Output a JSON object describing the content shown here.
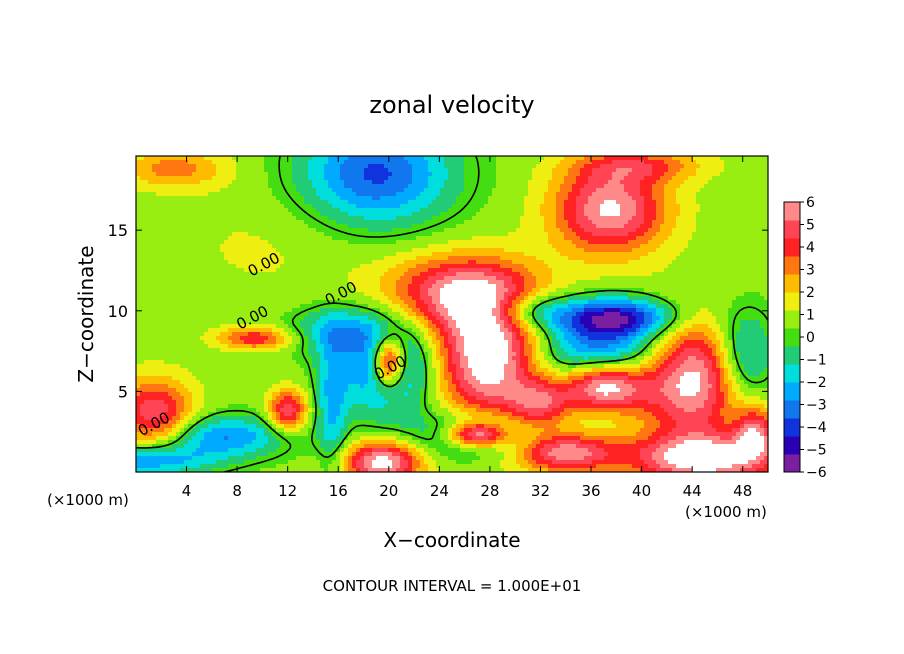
{
  "chart_data": {
    "type": "heatmap",
    "title": "zonal velocity",
    "xlabel": "X−coordinate",
    "ylabel": "Z−coordinate",
    "x_unit_left": "(×1000 m)",
    "x_unit_right": "(×1000 m)",
    "footer": "CONTOUR INTERVAL = 1.000E+01",
    "xlim": [
      0,
      50
    ],
    "ylim": [
      0,
      19.6
    ],
    "x_ticks": [
      4,
      8,
      12,
      16,
      20,
      24,
      28,
      32,
      36,
      40,
      44,
      48
    ],
    "x_tick_labels": [
      "4",
      "8",
      "12",
      "16",
      "20",
      "24",
      "28",
      "32",
      "36",
      "40",
      "44",
      "48"
    ],
    "y_ticks": [
      5,
      10,
      15
    ],
    "y_tick_labels": [
      "5",
      "10",
      "15"
    ],
    "colorbar": {
      "min": -6,
      "max": 6,
      "tick_values": [
        6,
        5,
        4,
        3,
        2,
        1,
        0,
        -1,
        -2,
        -3,
        -4,
        -5,
        -6
      ],
      "tick_labels": [
        "6",
        "5",
        "4",
        "3",
        "2",
        "1",
        "0",
        "−1",
        "−2",
        "−3",
        "−4",
        "−5",
        "−6"
      ],
      "colors": [
        "#7a1fa2",
        "#2a00b5",
        "#1133dd",
        "#1177ee",
        "#00aaff",
        "#00dddd",
        "#22cc77",
        "#44dd11",
        "#99ee11",
        "#eeee11",
        "#ffbb00",
        "#ff7711",
        "#ff2222",
        "#ff4455",
        "#ff8888"
      ]
    },
    "contour_label": "0.00",
    "contour_label_positions": [
      {
        "x": 10.3,
        "y": 12.6
      },
      {
        "x": 1.6,
        "y": 2.7
      },
      {
        "x": 9.4,
        "y": 9.3
      },
      {
        "x": 16.4,
        "y": 10.8
      },
      {
        "x": 20.3,
        "y": 6.2
      }
    ],
    "field_blobs": [
      {
        "x": 19,
        "y": 18.5,
        "rx": 6,
        "ry": 3.2,
        "v": -4.5
      },
      {
        "x": 37.5,
        "y": 16.3,
        "rx": 4.5,
        "ry": 2.8,
        "v": 5.5
      },
      {
        "x": 25.5,
        "y": 11.2,
        "rx": 6,
        "ry": 2.2,
        "v": 4.5
      },
      {
        "x": 28,
        "y": 7.2,
        "rx": 4.5,
        "ry": 4,
        "v": 7
      },
      {
        "x": 37,
        "y": 7.0,
        "rx": 6.5,
        "ry": 2.6,
        "v": -5
      },
      {
        "x": 37,
        "y": 5.4,
        "rx": 3.5,
        "ry": 1.6,
        "v": 8
      },
      {
        "x": 38,
        "y": 9.6,
        "rx": 5,
        "ry": 1.2,
        "v": -5
      },
      {
        "x": 44,
        "y": 6.0,
        "rx": 4.5,
        "ry": 3.5,
        "v": 7
      },
      {
        "x": 20,
        "y": 6.5,
        "rx": 4,
        "ry": 3,
        "v": -4.5
      },
      {
        "x": 20,
        "y": 6.8,
        "rx": 1.3,
        "ry": 1.6,
        "v": 7
      },
      {
        "x": 27,
        "y": 2.3,
        "rx": 4.5,
        "ry": 1.4,
        "v": -4
      },
      {
        "x": 27,
        "y": 2.3,
        "rx": 2.5,
        "ry": 0.8,
        "v": 7
      },
      {
        "x": 19.5,
        "y": 0.6,
        "rx": 3,
        "ry": 1.3,
        "v": 6
      },
      {
        "x": 34,
        "y": 1.2,
        "rx": 4,
        "ry": 1.2,
        "v": 5
      },
      {
        "x": 45,
        "y": 0.8,
        "rx": 6,
        "ry": 1.6,
        "v": 6
      },
      {
        "x": 1.5,
        "y": 3.6,
        "rx": 3,
        "ry": 2.2,
        "v": 4.5
      },
      {
        "x": 7,
        "y": 2.2,
        "rx": 5,
        "ry": 1.3,
        "v": -3.5
      },
      {
        "x": 12,
        "y": 3.8,
        "rx": 1.5,
        "ry": 1.3,
        "v": 4.5
      },
      {
        "x": 1,
        "y": 0.7,
        "rx": 5,
        "ry": 1,
        "v": -3.5
      },
      {
        "x": 9.5,
        "y": 8.3,
        "rx": 3,
        "ry": 0.7,
        "v": 3.5
      },
      {
        "x": 16,
        "y": 8.8,
        "rx": 4,
        "ry": 1.5,
        "v": -2.5
      },
      {
        "x": 31,
        "y": 10,
        "rx": 3,
        "ry": 1.2,
        "v": -3
      },
      {
        "x": 48,
        "y": 7,
        "rx": 2.5,
        "ry": 3,
        "v": -4
      },
      {
        "x": 49,
        "y": 2.5,
        "rx": 1.5,
        "ry": 1.6,
        "v": 4
      },
      {
        "x": 32,
        "y": 4.2,
        "rx": 2.5,
        "ry": 1.6,
        "v": 3.5
      },
      {
        "x": 10,
        "y": 14,
        "rx": 8,
        "ry": 4,
        "v": 0.6
      },
      {
        "x": 3,
        "y": 18.8,
        "rx": 4,
        "ry": 1.2,
        "v": 2.5
      },
      {
        "x": 40,
        "y": 19,
        "rx": 5,
        "ry": 1,
        "v": 2.5
      },
      {
        "x": 15.5,
        "y": 4,
        "rx": 1.2,
        "ry": 4,
        "v": -2.5
      }
    ]
  }
}
